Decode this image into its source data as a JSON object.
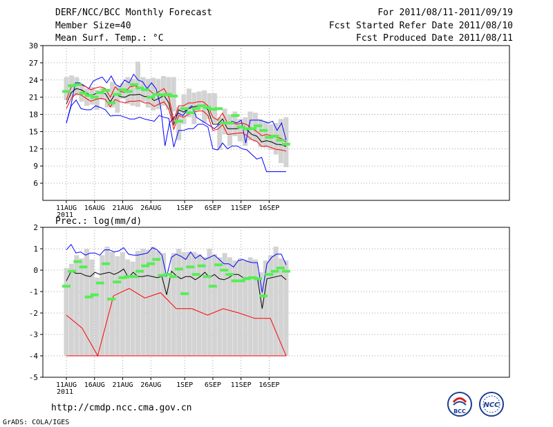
{
  "header": {
    "title": "DERF/NCC/BCC Monthly Forecast",
    "member_size": "Member Size=40",
    "variable": "Mean Surf. Temp.: °C",
    "period": "For 2011/08/11-2011/09/19",
    "fcst_started": "Fcst Started Refer Date 2011/08/10",
    "fcst_produced": "Fcst Produced Date 2011/08/11"
  },
  "footer": {
    "url": "http://cmdp.ncc.cma.gov.cn",
    "grads": "GrADS: COLA/IGES",
    "logo_bcc": "BCC",
    "logo_ncc": "NCC"
  },
  "colors": {
    "mean": "#000000",
    "spread": "#ff0000",
    "extreme": "#0000ff",
    "bar": "#d3d3d3",
    "marker": "#55ee55",
    "grid": "#888888"
  },
  "chart_data": [
    {
      "type": "line",
      "title": "Mean Surf. Temp.: °C",
      "xlabel": "",
      "ylabel": "",
      "ylim": [
        3,
        30
      ],
      "yticks": [
        6,
        9,
        12,
        15,
        18,
        21,
        24,
        27,
        30
      ],
      "x_tick_labels": [
        "11AUG",
        "16AUG",
        "21AUG",
        "26AUG",
        "1SEP",
        "6SEP",
        "11SEP",
        "16SEP"
      ],
      "x_tick_days": [
        0,
        5,
        10,
        15,
        21,
        26,
        31,
        36
      ],
      "year_label": "2011",
      "days": 40,
      "series": [
        {
          "name": "max",
          "color": "#0000ff",
          "values": [
            16.5,
            19.5,
            23.5,
            23.5,
            23,
            22.5,
            23.8,
            24.2,
            24.5,
            23.5,
            24.7,
            23.2,
            22.8,
            24,
            23.5,
            25,
            24,
            23.7,
            22.5,
            23.5,
            22.5,
            19.5,
            12.5,
            16.5,
            17.5,
            18.2,
            17.8,
            18.8,
            19.5,
            17.5,
            17,
            16.5,
            16,
            15.5,
            16.2,
            16.5,
            16.5,
            16.8,
            16.5,
            17,
            13,
            17,
            17,
            17,
            16.8,
            16.5,
            16.8,
            15.2,
            16.5,
            13.5
          ]
        },
        {
          "name": "upper",
          "color": "#ff0000",
          "values": [
            20.5,
            22.8,
            23.3,
            23.2,
            22.8,
            22.3,
            22.6,
            22.8,
            22.5,
            21,
            22.8,
            22,
            21.8,
            22.8,
            23,
            22.7,
            22.2,
            22.2,
            21.5,
            22,
            22.5,
            21,
            17,
            19.5,
            19.5,
            20,
            20,
            20.2,
            20.2,
            19.5,
            17.5,
            17,
            18.2,
            16.5,
            16.5,
            16.3,
            16.5,
            16.2,
            15.5,
            15,
            14.3,
            14.5,
            14.3,
            14,
            13.8,
            13.2
          ]
        },
        {
          "name": "mean",
          "color": "#000000",
          "values": [
            19.8,
            21.8,
            22.5,
            22.3,
            21.8,
            21.3,
            21.6,
            21.8,
            21.6,
            20.2,
            21.6,
            21.1,
            21,
            21.4,
            21.4,
            21.5,
            21.1,
            21.1,
            20.4,
            20.8,
            21.3,
            20,
            16.2,
            18.8,
            18.4,
            19,
            19.3,
            19.5,
            19.5,
            18.8,
            16.3,
            16.3,
            17.2,
            15.5,
            15.5,
            15.5,
            15.8,
            15.3,
            14.5,
            14.2,
            13.2,
            13.4,
            13.2,
            12.8,
            12.7,
            12.4
          ]
        },
        {
          "name": "lower",
          "color": "#ff0000",
          "values": [
            19,
            20.8,
            21.6,
            21.4,
            20.8,
            20.3,
            20.6,
            20.8,
            20.6,
            19.3,
            20.6,
            20.2,
            20,
            20.3,
            20.3,
            20.4,
            20,
            20,
            19.4,
            19.8,
            20.2,
            18.9,
            15.4,
            17.8,
            17.5,
            18,
            18.4,
            18.6,
            18.6,
            17.8,
            15.2,
            15.4,
            16.2,
            14.5,
            14.6,
            14.7,
            14.8,
            14.3,
            13.6,
            13.3,
            12.4,
            12.5,
            12.2,
            11.9,
            11.8,
            11.6
          ]
        },
        {
          "name": "min",
          "color": "#0000ff",
          "values": [
            16.5,
            19.5,
            20.5,
            19,
            18.8,
            18.8,
            19.5,
            19.2,
            18.8,
            17.7,
            17.8,
            17.8,
            17.5,
            17.2,
            17.2,
            17.5,
            17.2,
            17,
            16.8,
            17.8,
            17.5,
            17.3,
            12.3,
            15.2,
            15.2,
            15.5,
            15.5,
            16.3,
            16.3,
            15.8,
            12,
            11.8,
            13,
            12,
            12.5,
            12.5,
            12,
            11.8,
            11,
            10.2,
            10.5,
            8,
            8,
            8,
            8,
            8
          ]
        }
      ],
      "bars": [
        [
          20.5,
          24.5
        ],
        [
          21,
          24.8
        ],
        [
          21.3,
          24.5
        ],
        [
          20.2,
          23.2
        ],
        [
          19.5,
          22.5
        ],
        [
          19.7,
          22.8
        ],
        [
          18.8,
          22.3
        ],
        [
          20.6,
          22.6
        ],
        [
          19.2,
          22.3
        ],
        [
          19.2,
          23.7
        ],
        [
          18.3,
          23
        ],
        [
          20.7,
          23.5
        ],
        [
          19.8,
          24.5
        ],
        [
          19.5,
          24.2
        ],
        [
          19.3,
          27.2
        ],
        [
          20.2,
          24.5
        ],
        [
          19.2,
          24.2
        ],
        [
          18.7,
          24.4
        ],
        [
          18.9,
          24.2
        ],
        [
          19.5,
          24.7
        ],
        [
          18.8,
          24.5
        ],
        [
          18.5,
          24.5
        ],
        [
          13.5,
          19.3
        ],
        [
          16.3,
          21.5
        ],
        [
          17.5,
          22.5
        ],
        [
          16.3,
          21.8
        ],
        [
          18.8,
          22
        ],
        [
          16.5,
          22.2
        ],
        [
          17.2,
          21.7
        ],
        [
          16.5,
          21.7
        ],
        [
          11.8,
          17.5
        ],
        [
          14.5,
          19
        ],
        [
          12.5,
          18
        ],
        [
          14.2,
          18.5
        ],
        [
          13.3,
          17.2
        ],
        [
          12.5,
          17.5
        ],
        [
          13.5,
          18.5
        ],
        [
          13.2,
          18.3
        ],
        [
          12.3,
          17.2
        ],
        [
          12.2,
          16.8
        ],
        [
          11.8,
          16.3
        ],
        [
          11,
          16.5
        ],
        [
          9.5,
          17.2
        ],
        [
          8.8,
          17.5
        ]
      ],
      "markers": [
        22,
        23,
        23.2,
        21.7,
        21.3,
        21,
        21.8,
        22.2,
        20,
        21.5,
        22.3,
        22,
        23.2,
        22.6,
        22.3,
        21,
        21.5,
        21.4,
        21.5,
        21.2,
        16.8,
        19,
        18.3,
        19,
        19.5,
        19.2,
        18.9,
        19,
        16.5,
        16.5,
        17.8,
        15.8,
        15.5,
        15.5,
        16,
        15.2,
        14,
        14.2,
        13.5,
        12.8
      ]
    },
    {
      "type": "line",
      "title": "Prec.: log(mm/d)",
      "xlabel": "",
      "ylabel": "",
      "ylim": [
        -5,
        2
      ],
      "yticks": [
        -5,
        -4,
        -3,
        -2,
        -1,
        0,
        1,
        2
      ],
      "x_tick_labels": [
        "11AUG",
        "16AUG",
        "21AUG",
        "26AUG",
        "1SEP",
        "6SEP",
        "11SEP",
        "16SEP"
      ],
      "x_tick_days": [
        0,
        5,
        10,
        15,
        21,
        26,
        31,
        36
      ],
      "year_label": "2011",
      "days": 40,
      "series": [
        {
          "name": "max",
          "color": "#0000ff",
          "values": [
            0.95,
            1.2,
            0.8,
            0.85,
            0.7,
            0.8,
            0.8,
            0.7,
            0.95,
            0.95,
            0.85,
            0.9,
            1.05,
            0.75,
            0.7,
            0.7,
            0.75,
            0.8,
            1.05,
            0.95,
            0.7,
            -0.3,
            0.6,
            0.75,
            0.65,
            0.5,
            0.85,
            0.55,
            0.7,
            0.5,
            0.6,
            0.7,
            0.5,
            0.3,
            0.3,
            0.15,
            0.45,
            0.5,
            0.4,
            0.35,
            0.35,
            -1.05,
            0.3,
            0.6,
            0.75,
            0.75,
            0.25
          ]
        },
        {
          "name": "mean",
          "color": "#000000",
          "values": [
            -0.5,
            -0.05,
            -0.15,
            -0.15,
            -0.25,
            -0.3,
            -0.1,
            -0.2,
            -0.15,
            -0.1,
            -0.2,
            -0.1,
            0.05,
            -0.35,
            -0.1,
            -0.3,
            -0.3,
            -0.25,
            -0.3,
            -0.35,
            -0.3,
            -1.15,
            -0.05,
            -0.25,
            -0.4,
            -0.3,
            -0.3,
            -0.45,
            -0.3,
            -0.1,
            -0.35,
            -0.2,
            -0.4,
            -0.45,
            -0.35,
            -0.2,
            -0.2,
            -0.35,
            -0.35,
            -0.35,
            -0.35,
            -1.8,
            -0.4,
            -0.35,
            -0.3,
            -0.25,
            -0.45
          ]
        },
        {
          "name": "low",
          "color": "#ff0000",
          "values": [
            -2.1,
            -2.7,
            -4,
            -1.2,
            -0.85,
            -1.3,
            -1.05,
            -1.8,
            -1.8,
            -2.1,
            -1.8,
            -2,
            -2.25,
            -2.25,
            -4
          ]
        },
        {
          "name": "floor",
          "color": "#ff0000",
          "values": [
            -4,
            -4,
            -4,
            -4,
            -4,
            -4,
            -4,
            -4,
            -4,
            -4,
            -4,
            -4,
            -4,
            -4,
            -4,
            -4,
            -4,
            -4,
            -4,
            -4,
            -4,
            -4,
            -4,
            -4,
            -4,
            -4,
            -4,
            -4,
            -4,
            -4,
            -4,
            -4,
            -4,
            -4,
            -4,
            -4,
            -4,
            -4,
            -4,
            -4,
            -4,
            -4
          ]
        }
      ],
      "bars": [
        [
          -4,
          0.1
        ],
        [
          -4,
          0.3
        ],
        [
          -4,
          0.7
        ],
        [
          -4,
          0.55
        ],
        [
          -4,
          1
        ],
        [
          -4,
          0.5
        ],
        [
          -4,
          -0.35
        ],
        [
          -4,
          0.7
        ],
        [
          -4,
          1.1
        ],
        [
          -4,
          0.85
        ],
        [
          -4,
          0.65
        ],
        [
          -4,
          0.85
        ],
        [
          -4,
          0.5
        ],
        [
          -4,
          0.4
        ],
        [
          -4,
          0.9
        ],
        [
          -4,
          1
        ],
        [
          -4,
          0.95
        ],
        [
          -4,
          1.1
        ],
        [
          -4,
          0.9
        ],
        [
          -4,
          0.8
        ],
        [
          -4,
          -0.3
        ],
        [
          -4,
          0.8
        ],
        [
          -4,
          1
        ],
        [
          -4,
          0.85
        ],
        [
          -4,
          0.85
        ],
        [
          -4,
          0.85
        ],
        [
          -4,
          0.75
        ],
        [
          -4,
          0.6
        ],
        [
          -4,
          1
        ],
        [
          -4,
          0.75
        ],
        [
          -4,
          0.6
        ],
        [
          -4,
          0.8
        ],
        [
          -4,
          0.6
        ],
        [
          -4,
          0.45
        ],
        [
          -4,
          0.55
        ],
        [
          -4,
          0.45
        ],
        [
          -4,
          0.6
        ],
        [
          -4,
          0.5
        ],
        [
          -4,
          -0.1
        ],
        [
          -4,
          0.45
        ],
        [
          -4,
          0.7
        ],
        [
          -4,
          1.1
        ],
        [
          -4,
          0.55
        ],
        [
          -4,
          0.45
        ]
      ],
      "markers": [
        -0.75,
        -0.05,
        0.4,
        0.15,
        -1.25,
        -1.15,
        -0.6,
        0.3,
        -1.35,
        -0.55,
        -0.35,
        -0.3,
        -0.3,
        -0.05,
        0.2,
        0.3,
        0.5,
        -0.25,
        -0.2,
        -0.3,
        0.05,
        -1.1,
        0.15,
        -0.2,
        0.2,
        -0.3,
        -0.75,
        0.25,
        0,
        -0.2,
        -0.5,
        -0.5,
        -0.4,
        -0.35,
        -0.4,
        -1.2,
        -0.2,
        -0.05,
        0.1,
        -0.05
      ]
    }
  ]
}
